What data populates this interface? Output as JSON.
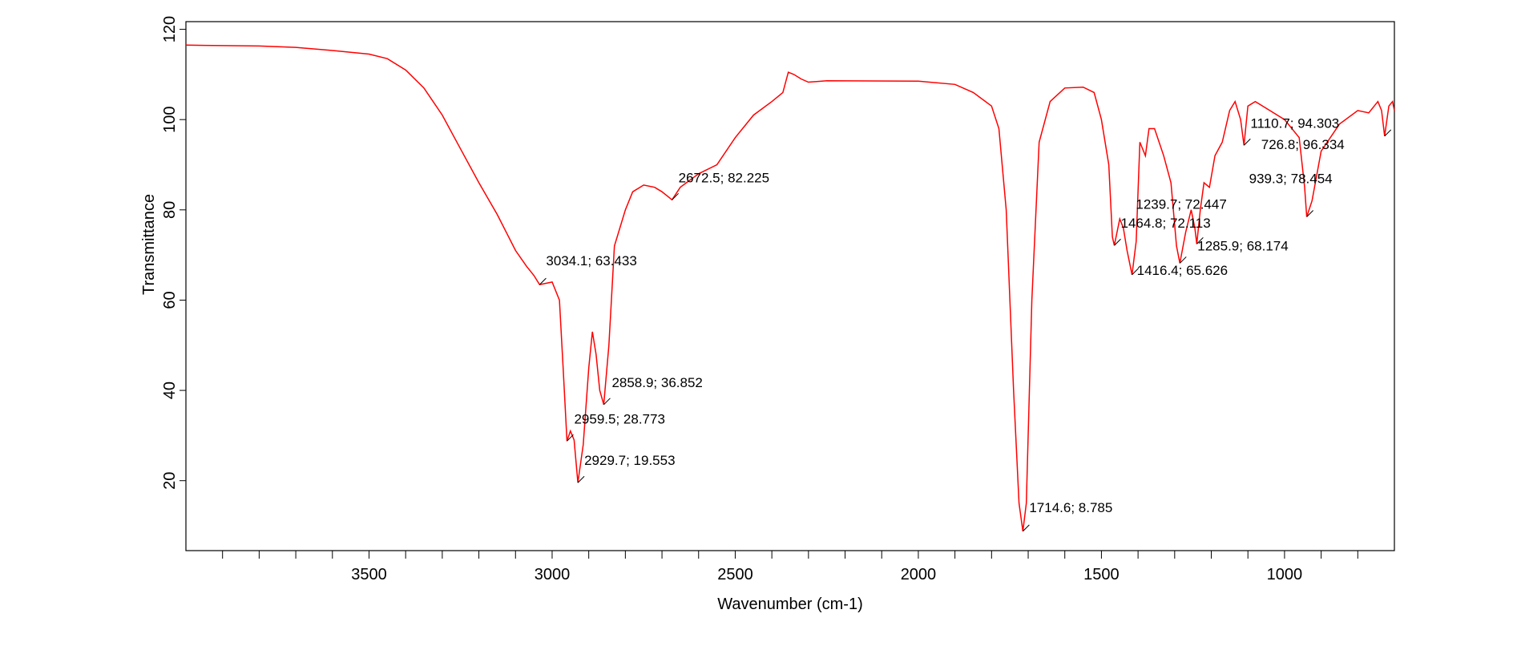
{
  "chart_data": {
    "type": "line",
    "x_label": "Wavenumber (cm-1)",
    "y_label": "Transmittance",
    "xlim": [
      4000,
      700
    ],
    "ylim": [
      4.5,
      121.7
    ],
    "xticks": [
      3500,
      3000,
      2500,
      2000,
      1500,
      1000
    ],
    "xminorticks": [
      3900,
      3800,
      3700,
      3600,
      3400,
      3300,
      3200,
      3100,
      2900,
      2800,
      2700,
      2600,
      2400,
      2300,
      2200,
      2100,
      1900,
      1800,
      1700,
      1600,
      1400,
      1300,
      1200,
      1100,
      900,
      800
    ],
    "yticks": [
      20,
      40,
      60,
      80,
      100,
      120
    ],
    "series": [
      {
        "color": "#ff0000",
        "x": [
          4000,
          3800,
          3700,
          3600,
          3500,
          3450,
          3400,
          3350,
          3300,
          3250,
          3200,
          3150,
          3100,
          3070,
          3050,
          3034.1,
          3000,
          2980,
          2970,
          2959.5,
          2950,
          2940,
          2929.7,
          2915,
          2900,
          2890,
          2880,
          2870,
          2858.9,
          2845,
          2830,
          2800,
          2780,
          2750,
          2720,
          2700,
          2672.5,
          2650,
          2600,
          2550,
          2500,
          2450,
          2400,
          2370,
          2355,
          2340,
          2320,
          2300,
          2250,
          2000,
          1900,
          1850,
          1800,
          1780,
          1760,
          1740,
          1725,
          1714.6,
          1705,
          1690,
          1670,
          1640,
          1600,
          1550,
          1520,
          1500,
          1480,
          1470,
          1464.8,
          1450,
          1440,
          1430,
          1416.4,
          1405,
          1395,
          1380,
          1370,
          1355,
          1330,
          1310,
          1295,
          1285.9,
          1270,
          1255,
          1245,
          1239.7,
          1230,
          1220,
          1205,
          1190,
          1170,
          1150,
          1135,
          1120,
          1110.7,
          1100,
          1080,
          1050,
          1000,
          960,
          945,
          939.3,
          925,
          900,
          850,
          800,
          770,
          745,
          735,
          726.8,
          715,
          705,
          700
        ],
        "values": [
          116.5,
          116.3,
          116,
          115.3,
          114.5,
          113.5,
          111,
          107,
          101,
          93.5,
          86,
          79,
          71,
          67.5,
          65.5,
          63.433,
          64,
          60,
          45,
          28.773,
          31,
          29,
          19.553,
          28,
          45,
          53,
          48,
          40,
          36.852,
          50,
          72,
          80,
          84,
          85.5,
          85,
          84,
          82.225,
          85,
          88,
          90,
          96,
          101,
          104,
          106,
          110.5,
          110,
          109,
          108.3,
          108.6,
          108.5,
          107.8,
          106,
          103,
          98,
          80,
          40,
          15,
          8.785,
          15,
          60,
          95,
          104,
          107,
          107.2,
          106,
          100,
          90,
          74,
          72.113,
          78,
          76,
          71,
          65.626,
          73,
          95,
          92,
          98,
          98,
          92,
          86,
          72,
          68.174,
          75,
          80,
          76,
          72.447,
          80,
          86,
          85,
          92,
          95,
          102,
          104,
          100,
          94.303,
          103,
          104,
          102.5,
          100,
          96,
          85,
          78.454,
          82,
          93,
          99,
          102,
          101.5,
          104,
          102,
          96.334,
          103,
          104,
          102
        ]
      }
    ],
    "annotations": [
      {
        "x": 3034.1,
        "y": 63.433,
        "label": "3034.1; 63.433"
      },
      {
        "x": 2672.5,
        "y": 82.225,
        "label": "2672.5; 82.225"
      },
      {
        "x": 2858.9,
        "y": 36.852,
        "label": "2858.9; 36.852"
      },
      {
        "x": 2959.5,
        "y": 28.773,
        "label": "2959.5; 28.773"
      },
      {
        "x": 2929.7,
        "y": 19.553,
        "label": "2929.7; 19.553"
      },
      {
        "x": 1714.6,
        "y": 8.785,
        "label": "1714.6; 8.785"
      },
      {
        "x": 1464.8,
        "y": 72.113,
        "label": "1464.8; 72.113"
      },
      {
        "x": 1416.4,
        "y": 65.626,
        "label": "1416.4; 65.626"
      },
      {
        "x": 1285.9,
        "y": 68.174,
        "label": "1285.9; 68.174"
      },
      {
        "x": 1239.7,
        "y": 72.447,
        "label": "1239.7; 72.447"
      },
      {
        "x": 1110.7,
        "y": 94.303,
        "label": "1110.7; 94.303"
      },
      {
        "x": 726.8,
        "y": 96.334,
        "label": "726.8; 96.334"
      },
      {
        "x": 939.3,
        "y": 78.454,
        "label": "939.3; 78.454"
      }
    ]
  }
}
